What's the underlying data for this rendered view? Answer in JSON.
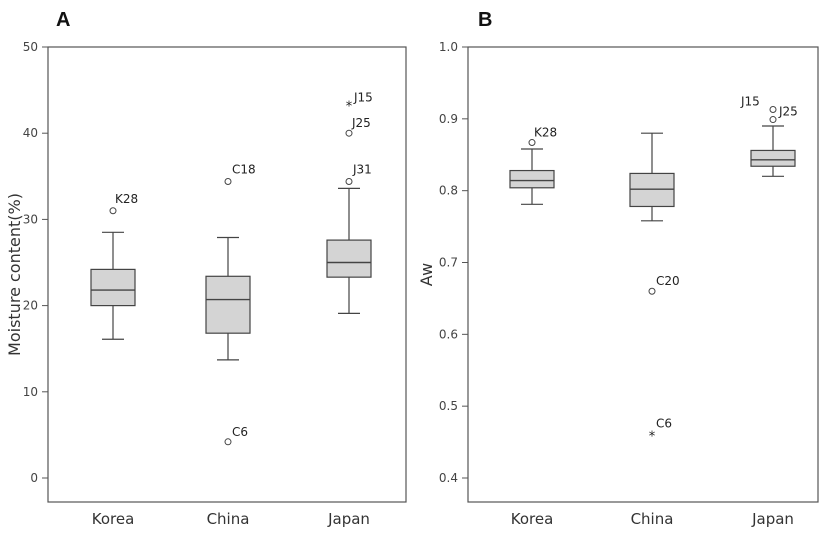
{
  "chart_data": [
    {
      "type": "box",
      "panel": "A",
      "xlabel": "",
      "ylabel": "Moisture content(%)",
      "ylim": [
        0,
        50
      ],
      "yticks": [
        0,
        10,
        20,
        30,
        40,
        50
      ],
      "categories": [
        "Korea",
        "China",
        "Japan"
      ],
      "boxes": [
        {
          "category": "Korea",
          "whisker_low": 16.1,
          "q1": 20.0,
          "median": 21.8,
          "q3": 24.2,
          "whisker_high": 28.5,
          "outliers": [
            {
              "label": "K28",
              "value": 31.0,
              "marker": "circle"
            }
          ]
        },
        {
          "category": "China",
          "whisker_low": 13.7,
          "q1": 16.8,
          "median": 20.7,
          "q3": 23.4,
          "whisker_high": 27.9,
          "outliers": [
            {
              "label": "C18",
              "value": 34.4,
              "marker": "circle"
            },
            {
              "label": "C6",
              "value": 4.2,
              "marker": "circle"
            }
          ]
        },
        {
          "category": "Japan",
          "whisker_low": 19.1,
          "q1": 23.3,
          "median": 25.0,
          "q3": 27.6,
          "whisker_high": 33.6,
          "outliers": [
            {
              "label": "J31",
              "value": 34.4,
              "marker": "circle"
            },
            {
              "label": "J25",
              "value": 40.0,
              "marker": "circle"
            },
            {
              "label": "J15",
              "value": 43.2,
              "marker": "star"
            }
          ]
        }
      ]
    },
    {
      "type": "box",
      "panel": "B",
      "xlabel": "",
      "ylabel": "Aw",
      "ylim": [
        0.38,
        1.0
      ],
      "yticks": [
        "0.4",
        "0.5",
        "0.6",
        "0.7",
        "0.8",
        "0.9",
        "1.0"
      ],
      "categories": [
        "Korea",
        "China",
        "Japan"
      ],
      "boxes": [
        {
          "category": "Korea",
          "whisker_low": 0.781,
          "q1": 0.804,
          "median": 0.814,
          "q3": 0.828,
          "whisker_high": 0.858,
          "outliers": [
            {
              "label": "K28",
              "value": 0.867,
              "marker": "circle"
            }
          ]
        },
        {
          "category": "China",
          "whisker_low": 0.758,
          "q1": 0.778,
          "median": 0.802,
          "q3": 0.824,
          "whisker_high": 0.88,
          "outliers": [
            {
              "label": "C20",
              "value": 0.66,
              "marker": "circle"
            },
            {
              "label": "C6",
              "value": 0.459,
              "marker": "star"
            }
          ]
        },
        {
          "category": "Japan",
          "whisker_low": 0.82,
          "q1": 0.834,
          "median": 0.843,
          "q3": 0.856,
          "whisker_high": 0.89,
          "outliers": [
            {
              "label": "J25",
              "value": 0.899,
              "marker": "circle"
            },
            {
              "label": "J15",
              "value": 0.913,
              "marker": "circle"
            }
          ]
        }
      ]
    }
  ]
}
